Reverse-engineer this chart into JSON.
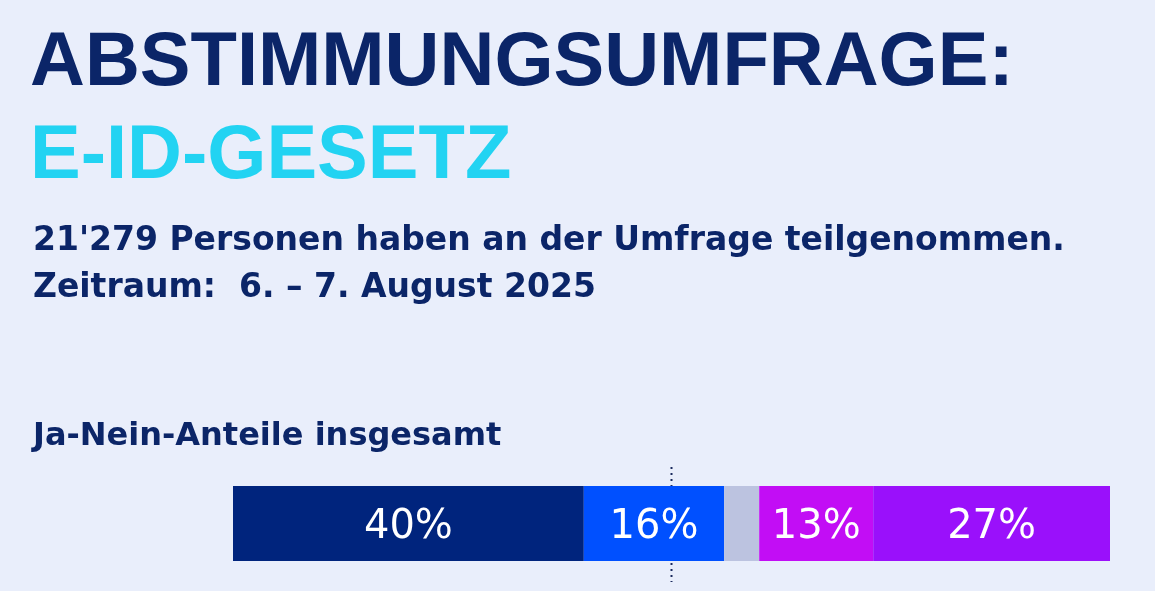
{
  "chart_data": {
    "type": "bar",
    "orientation": "horizontal",
    "stacked": true,
    "title": "ABSTIMMUNGSUMFRAGE:",
    "subtitle": "E-ID-GESETZ",
    "annotations": [
      "21'279 Personen haben an der Umfrage teilgenommen.",
      "Zeitraum:  6. – 7. August 2025",
      "Ja-Nein-Anteile insgesamt"
    ],
    "categories": [
      null
    ],
    "series": [
      {
        "color": "#00247d",
        "values": [
          40
        ],
        "value_labels": [
          "40%"
        ]
      },
      {
        "color": "#0050ff",
        "values": [
          16
        ],
        "value_labels": [
          "16%"
        ]
      },
      {
        "color": "#bcc3e0",
        "values": [
          4
        ],
        "value_labels": [
          null
        ]
      },
      {
        "color": "#c20df5",
        "values": [
          13
        ],
        "value_labels": [
          "13%"
        ]
      },
      {
        "color": "#9a10fb",
        "values": [
          27
        ],
        "value_labels": [
          "27%"
        ]
      }
    ],
    "xlim": [
      0,
      100
    ],
    "ref_lines": [
      {
        "axis": "x",
        "value": 50,
        "color": "#1b2a5e",
        "line_style": "dotted"
      }
    ]
  }
}
